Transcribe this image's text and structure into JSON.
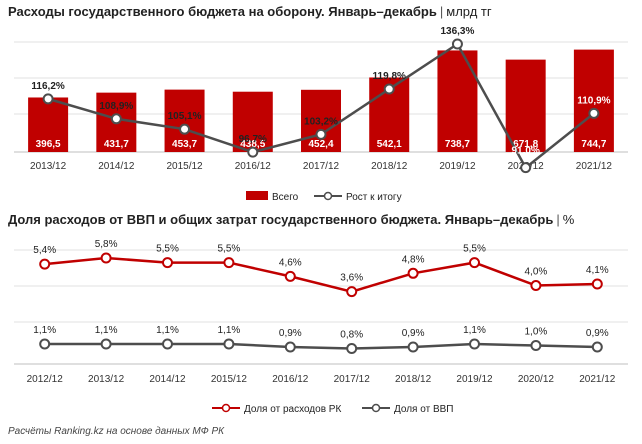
{
  "chart1": {
    "title": "Расходы государственного бюджета на оборону. Январь–декабрь",
    "separator": "|",
    "unit": "млрд тг",
    "chart_data": {
      "type": "bar",
      "categories": [
        "2013/12",
        "2014/12",
        "2015/12",
        "2016/12",
        "2017/12",
        "2018/12",
        "2019/12",
        "2020/12",
        "2021/12"
      ],
      "series": [
        {
          "name": "Всего",
          "type": "bar",
          "values": [
            396.5,
            431.7,
            453.7,
            438.5,
            452.4,
            542.1,
            738.7,
            671.8,
            744.7
          ],
          "labels": [
            "396,5",
            "431,7",
            "453,7",
            "438,5",
            "452,4",
            "542,1",
            "738,7",
            "671,8",
            "744,7"
          ]
        },
        {
          "name": "Рост к итогу",
          "type": "line",
          "values": [
            116.2,
            108.9,
            105.1,
            96.7,
            103.2,
            119.8,
            136.3,
            91.0,
            110.9
          ],
          "labels": [
            "116,2%",
            "108,9%",
            "105,1%",
            "96,7%",
            "103,2%",
            "119,8%",
            "136,3%",
            "91,0%",
            "110,9%"
          ]
        }
      ],
      "grid": true,
      "legend_position": "bottom"
    },
    "colors": {
      "bar": "#c00000",
      "line": "#4d4d4d",
      "grid": "#e0e0e0"
    }
  },
  "chart2": {
    "title": "Доля расходов от ВВП и общих затрат государственного бюджета. Январь–декабрь",
    "separator": "|",
    "unit": "%",
    "chart_data": {
      "type": "line",
      "categories": [
        "2012/12",
        "2013/12",
        "2014/12",
        "2015/12",
        "2016/12",
        "2017/12",
        "2018/12",
        "2019/12",
        "2020/12",
        "2021/12"
      ],
      "series": [
        {
          "name": "Доля от расходов РК",
          "values": [
            5.4,
            5.8,
            5.5,
            5.5,
            4.6,
            3.6,
            4.8,
            5.5,
            4.0,
            4.1
          ],
          "labels": [
            "5,4%",
            "5,8%",
            "5,5%",
            "5,5%",
            "4,6%",
            "3,6%",
            "4,8%",
            "5,5%",
            "4,0%",
            "4,1%"
          ]
        },
        {
          "name": "Доля от ВВП",
          "values": [
            1.1,
            1.1,
            1.1,
            1.1,
            0.9,
            0.8,
            0.9,
            1.1,
            1.0,
            0.9
          ],
          "labels": [
            "1,1%",
            "1,1%",
            "1,1%",
            "1,1%",
            "0,9%",
            "0,8%",
            "0,9%",
            "1,1%",
            "1,0%",
            "0,9%"
          ]
        }
      ],
      "grid": true,
      "legend_position": "bottom"
    },
    "colors": {
      "red": "#c00000",
      "gray": "#4d4d4d",
      "grid": "#e0e0e0"
    }
  },
  "source": "Расчёты Ranking.kz на основе данных МФ РК"
}
